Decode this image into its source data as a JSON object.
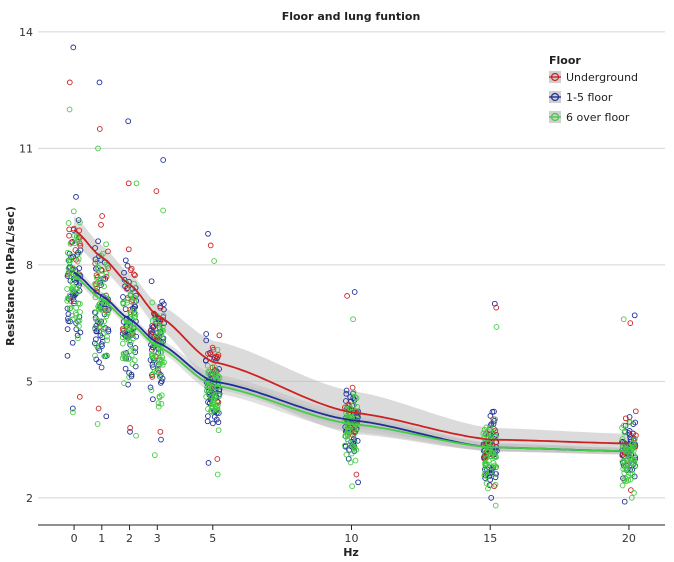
{
  "chart_data": {
    "type": "scatter",
    "title": "Floor and lung funtion",
    "xlabel": "Hz",
    "ylabel": "Resistance (hPa/L/sec)",
    "x_ticks": [
      0,
      1,
      2,
      3,
      5,
      10,
      15,
      20
    ],
    "y_ticks": [
      2,
      5,
      8,
      11,
      14
    ],
    "xlim": [
      -1.3,
      21.3
    ],
    "ylim": [
      1.3,
      14.1
    ],
    "grid": "horizontal",
    "legend": {
      "title": "Floor",
      "position": "top-right",
      "entries": [
        "Underground",
        "1-5 floor",
        "6 over floor"
      ]
    },
    "series": [
      {
        "name": "Underground",
        "color": "#cc2222",
        "x": [
          0,
          1,
          2,
          3,
          5,
          10,
          15,
          20
        ],
        "y": [
          8.9,
          8.2,
          7.5,
          6.7,
          5.5,
          4.2,
          3.5,
          3.4
        ],
        "scatter_center": [
          8.4,
          7.8,
          7.1,
          6.3,
          5.2,
          4.2,
          3.4,
          3.3
        ],
        "scatter_max": [
          12.7,
          11.5,
          10.1,
          9.9,
          8.5,
          7.2,
          6.9,
          6.5
        ],
        "scatter_min": [
          4.6,
          4.3,
          3.8,
          3.7,
          3.0,
          2.6,
          2.3,
          2.2
        ]
      },
      {
        "name": "1-5 floor",
        "color": "#1f2f9a",
        "x": [
          0,
          1,
          2,
          3,
          5,
          10,
          15,
          20
        ],
        "y": [
          7.8,
          7.2,
          6.6,
          6.0,
          5.0,
          4.0,
          3.3,
          3.2
        ],
        "scatter_center": [
          7.6,
          7.0,
          6.5,
          6.0,
          5.0,
          3.9,
          3.3,
          3.2
        ],
        "scatter_max": [
          13.6,
          12.7,
          11.7,
          10.7,
          8.8,
          7.3,
          7.0,
          6.7
        ],
        "scatter_min": [
          4.3,
          4.1,
          3.7,
          3.5,
          2.9,
          2.4,
          2.0,
          1.9
        ]
      },
      {
        "name": "6 over floor",
        "color": "#44cc44",
        "x": [
          0,
          1,
          2,
          3,
          5,
          10,
          15,
          20
        ],
        "y": [
          7.7,
          7.1,
          6.5,
          5.9,
          4.9,
          3.9,
          3.3,
          3.2
        ],
        "scatter_center": [
          7.6,
          7.0,
          6.4,
          5.8,
          4.9,
          3.8,
          3.2,
          3.1
        ],
        "scatter_max": [
          12.0,
          11.0,
          10.1,
          9.4,
          8.1,
          6.6,
          6.4,
          6.6
        ],
        "scatter_min": [
          4.2,
          3.9,
          3.6,
          3.1,
          2.6,
          2.3,
          1.8,
          2.0
        ]
      }
    ]
  }
}
